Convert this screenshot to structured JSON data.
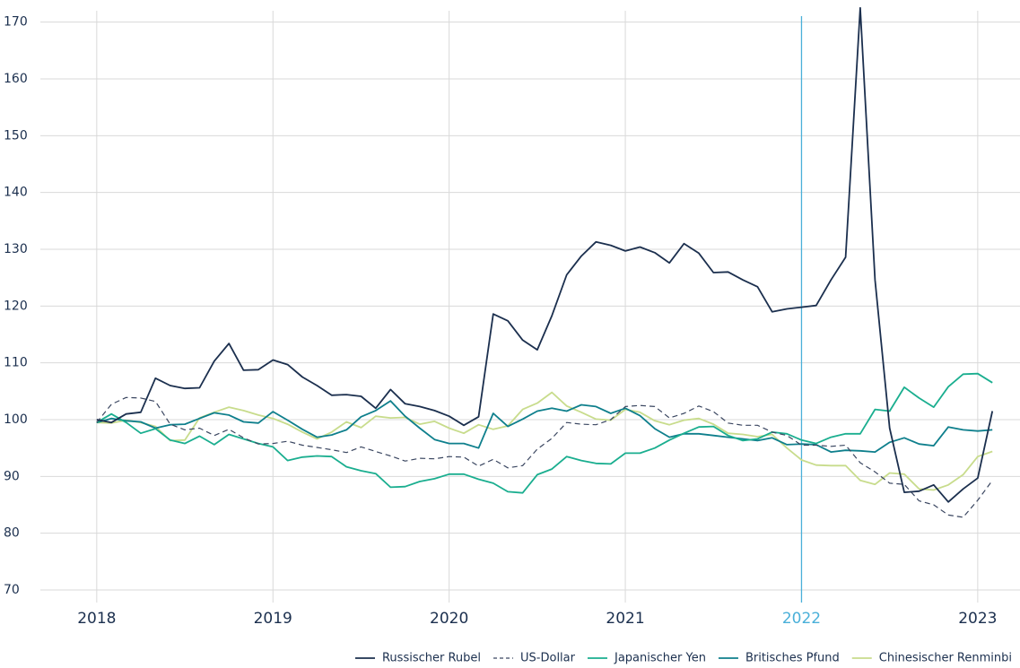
{
  "chart_data": {
    "type": "line",
    "x": [
      2018,
      2018.083,
      2018.167,
      2018.25,
      2018.333,
      2018.417,
      2018.5,
      2018.583,
      2018.667,
      2018.75,
      2018.833,
      2018.917,
      2019,
      2019.083,
      2019.167,
      2019.25,
      2019.333,
      2019.417,
      2019.5,
      2019.583,
      2019.667,
      2019.75,
      2019.833,
      2019.917,
      2020,
      2020.083,
      2020.167,
      2020.25,
      2020.333,
      2020.417,
      2020.5,
      2020.583,
      2020.667,
      2020.75,
      2020.833,
      2020.917,
      2021,
      2021.083,
      2021.167,
      2021.25,
      2021.333,
      2021.417,
      2021.5,
      2021.583,
      2021.667,
      2021.75,
      2021.833,
      2021.917,
      2022,
      2022.083,
      2022.167,
      2022.25,
      2022.333,
      2022.417,
      2022.5,
      2022.583,
      2022.667,
      2022.75,
      2022.833,
      2022.917,
      2023,
      2023.083
    ],
    "series": [
      {
        "name": "Russischer Rubel",
        "color": "#1b2f4e",
        "dash": false,
        "values": [
          100,
          99.5,
          101,
          101.3,
          107.3,
          106,
          105.5,
          105.6,
          110.3,
          113.4,
          108.7,
          108.8,
          110.5,
          109.7,
          107.5,
          106,
          104.3,
          104.4,
          104.1,
          102,
          105.3,
          102.8,
          102.3,
          101.6,
          100.6,
          99,
          100.5,
          118.6,
          117.4,
          114,
          112.3,
          118.3,
          125.5,
          128.8,
          131.3,
          130.7,
          129.7,
          130.4,
          129.4,
          127.6,
          131,
          129.3,
          125.9,
          126,
          124.6,
          123.4,
          119,
          119.5,
          119.8,
          120.1,
          124.6,
          128.6,
          172.5,
          124.6,
          98.5,
          87.2,
          87.4,
          88.5,
          85.5,
          87.8,
          89.7,
          101.5
        ]
      },
      {
        "name": "US-Dollar",
        "color": "#3a4660",
        "dash": true,
        "values": [
          99.5,
          102.7,
          103.9,
          103.8,
          103.2,
          99.2,
          98.2,
          98.5,
          97.2,
          98.3,
          96.8,
          95.7,
          95.8,
          96.2,
          95.5,
          95.1,
          94.7,
          94.2,
          95.2,
          94.4,
          93.6,
          92.7,
          93.2,
          93.1,
          93.5,
          93.4,
          91.8,
          93.0,
          91.5,
          91.9,
          94.8,
          96.7,
          99.5,
          99.2,
          99.1,
          100.0,
          102.3,
          102.5,
          102.3,
          100.3,
          101.1,
          102.4,
          101.4,
          99.4,
          99.0,
          99.0,
          97.8,
          97.2,
          95.5,
          95.5,
          95.3,
          95.5,
          92.4,
          90.8,
          88.8,
          88.6,
          85.7,
          85.0,
          83.2,
          82.8,
          85.8,
          89.3
        ]
      },
      {
        "name": "Japanischer Yen",
        "color": "#1aae8f",
        "dash": false,
        "values": [
          99.5,
          101,
          99.5,
          97.6,
          98.4,
          96.4,
          95.8,
          97.1,
          95.6,
          97.4,
          96.6,
          95.8,
          95.2,
          92.8,
          93.4,
          93.6,
          93.5,
          91.7,
          91.0,
          90.5,
          88.1,
          88.2,
          89.1,
          89.6,
          90.4,
          90.4,
          89.5,
          88.8,
          87.3,
          87.1,
          90.3,
          91.3,
          93.5,
          92.8,
          92.3,
          92.2,
          94.1,
          94.1,
          95.0,
          96.4,
          97.6,
          98.7,
          98.8,
          97.2,
          96.3,
          96.6,
          97.8,
          97.5,
          96.4,
          95.8,
          96.9,
          97.5,
          97.5,
          101.8,
          101.5,
          105.7,
          103.8,
          102.2,
          105.8,
          108,
          108.1,
          106.5
        ]
      },
      {
        "name": "Britisches Pfund",
        "color": "#0e7f8c",
        "dash": false,
        "values": [
          99.5,
          100.2,
          99.8,
          99.6,
          98.5,
          99.1,
          99.2,
          100.2,
          101.2,
          100.8,
          99.6,
          99.4,
          101.4,
          99.9,
          98.3,
          96.9,
          97.3,
          98.2,
          100.5,
          101.6,
          103.3,
          100.6,
          98.5,
          96.5,
          95.8,
          95.8,
          95.0,
          101.1,
          98.8,
          100.1,
          101.5,
          102.0,
          101.5,
          102.6,
          102.3,
          101.1,
          102.0,
          100.7,
          98.4,
          96.9,
          97.5,
          97.5,
          97.2,
          96.9,
          96.6,
          96.3,
          96.8,
          95.6,
          95.7,
          95.6,
          94.3,
          94.6,
          94.5,
          94.3,
          96,
          96.8,
          95.7,
          95.4,
          98.7,
          98.2,
          98.0,
          98.2
        ]
      },
      {
        "name": "Chinesischer Renminbi",
        "color": "#c8dc8c",
        "dash": false,
        "values": [
          99.5,
          99.4,
          99.9,
          99.5,
          98.8,
          96.3,
          96.4,
          100.3,
          101.3,
          102.2,
          101.6,
          100.8,
          100.2,
          99.2,
          97.8,
          96.6,
          97.8,
          99.6,
          98.6,
          100.6,
          100.3,
          100.4,
          99.2,
          99.7,
          98.5,
          97.6,
          99.1,
          98.3,
          98.9,
          101.8,
          102.9,
          104.8,
          102.4,
          101.3,
          100.1,
          99.9,
          101.8,
          101.3,
          99.8,
          99.1,
          99.9,
          100.2,
          99.2,
          97.6,
          97.4,
          97.0,
          97.4,
          95.0,
          92.9,
          92.0,
          91.9,
          91.9,
          89.3,
          88.6,
          90.6,
          90.4,
          87.8,
          87.6,
          88.5,
          90.3,
          93.5,
          94.4
        ]
      }
    ],
    "xlim": [
      2017.68,
      2023.24
    ],
    "xticks": [
      2018,
      2019,
      2020,
      2021,
      2022,
      2023
    ],
    "ylim": [
      70,
      172
    ],
    "yticks": [
      70,
      80,
      90,
      100,
      110,
      120,
      130,
      140,
      150,
      160,
      170
    ],
    "grid": true,
    "highlight_x": 2022,
    "highlight_color": "#4ab0d9",
    "legend": "bottom-right"
  }
}
